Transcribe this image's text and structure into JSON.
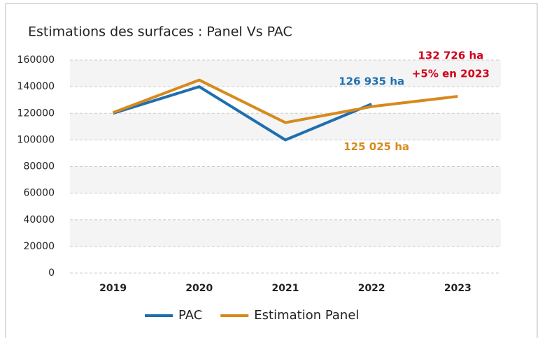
{
  "chart_data": {
    "type": "line",
    "title": "Estimations des surfaces : Panel Vs PAC",
    "categories": [
      "2019",
      "2020",
      "2021",
      "2022",
      "2023"
    ],
    "series": [
      {
        "name": "PAC",
        "color": "#1f6fb0",
        "values": [
          120000,
          140000,
          100000,
          126935,
          null
        ],
        "value_labels": [
          null,
          null,
          null,
          "126 935 ha",
          null
        ]
      },
      {
        "name": "Estimation Panel",
        "color": "#d68a1c",
        "values": [
          120500,
          145000,
          113000,
          125025,
          132726
        ],
        "value_labels": [
          null,
          null,
          null,
          "125 025 ha",
          "132 726 ha"
        ]
      }
    ],
    "annotation": "+5% en 2023",
    "ylim": [
      0,
      160000
    ],
    "yticks": [
      0,
      20000,
      40000,
      60000,
      80000,
      100000,
      120000,
      140000,
      160000
    ],
    "grid": true,
    "legend": "bottom"
  }
}
